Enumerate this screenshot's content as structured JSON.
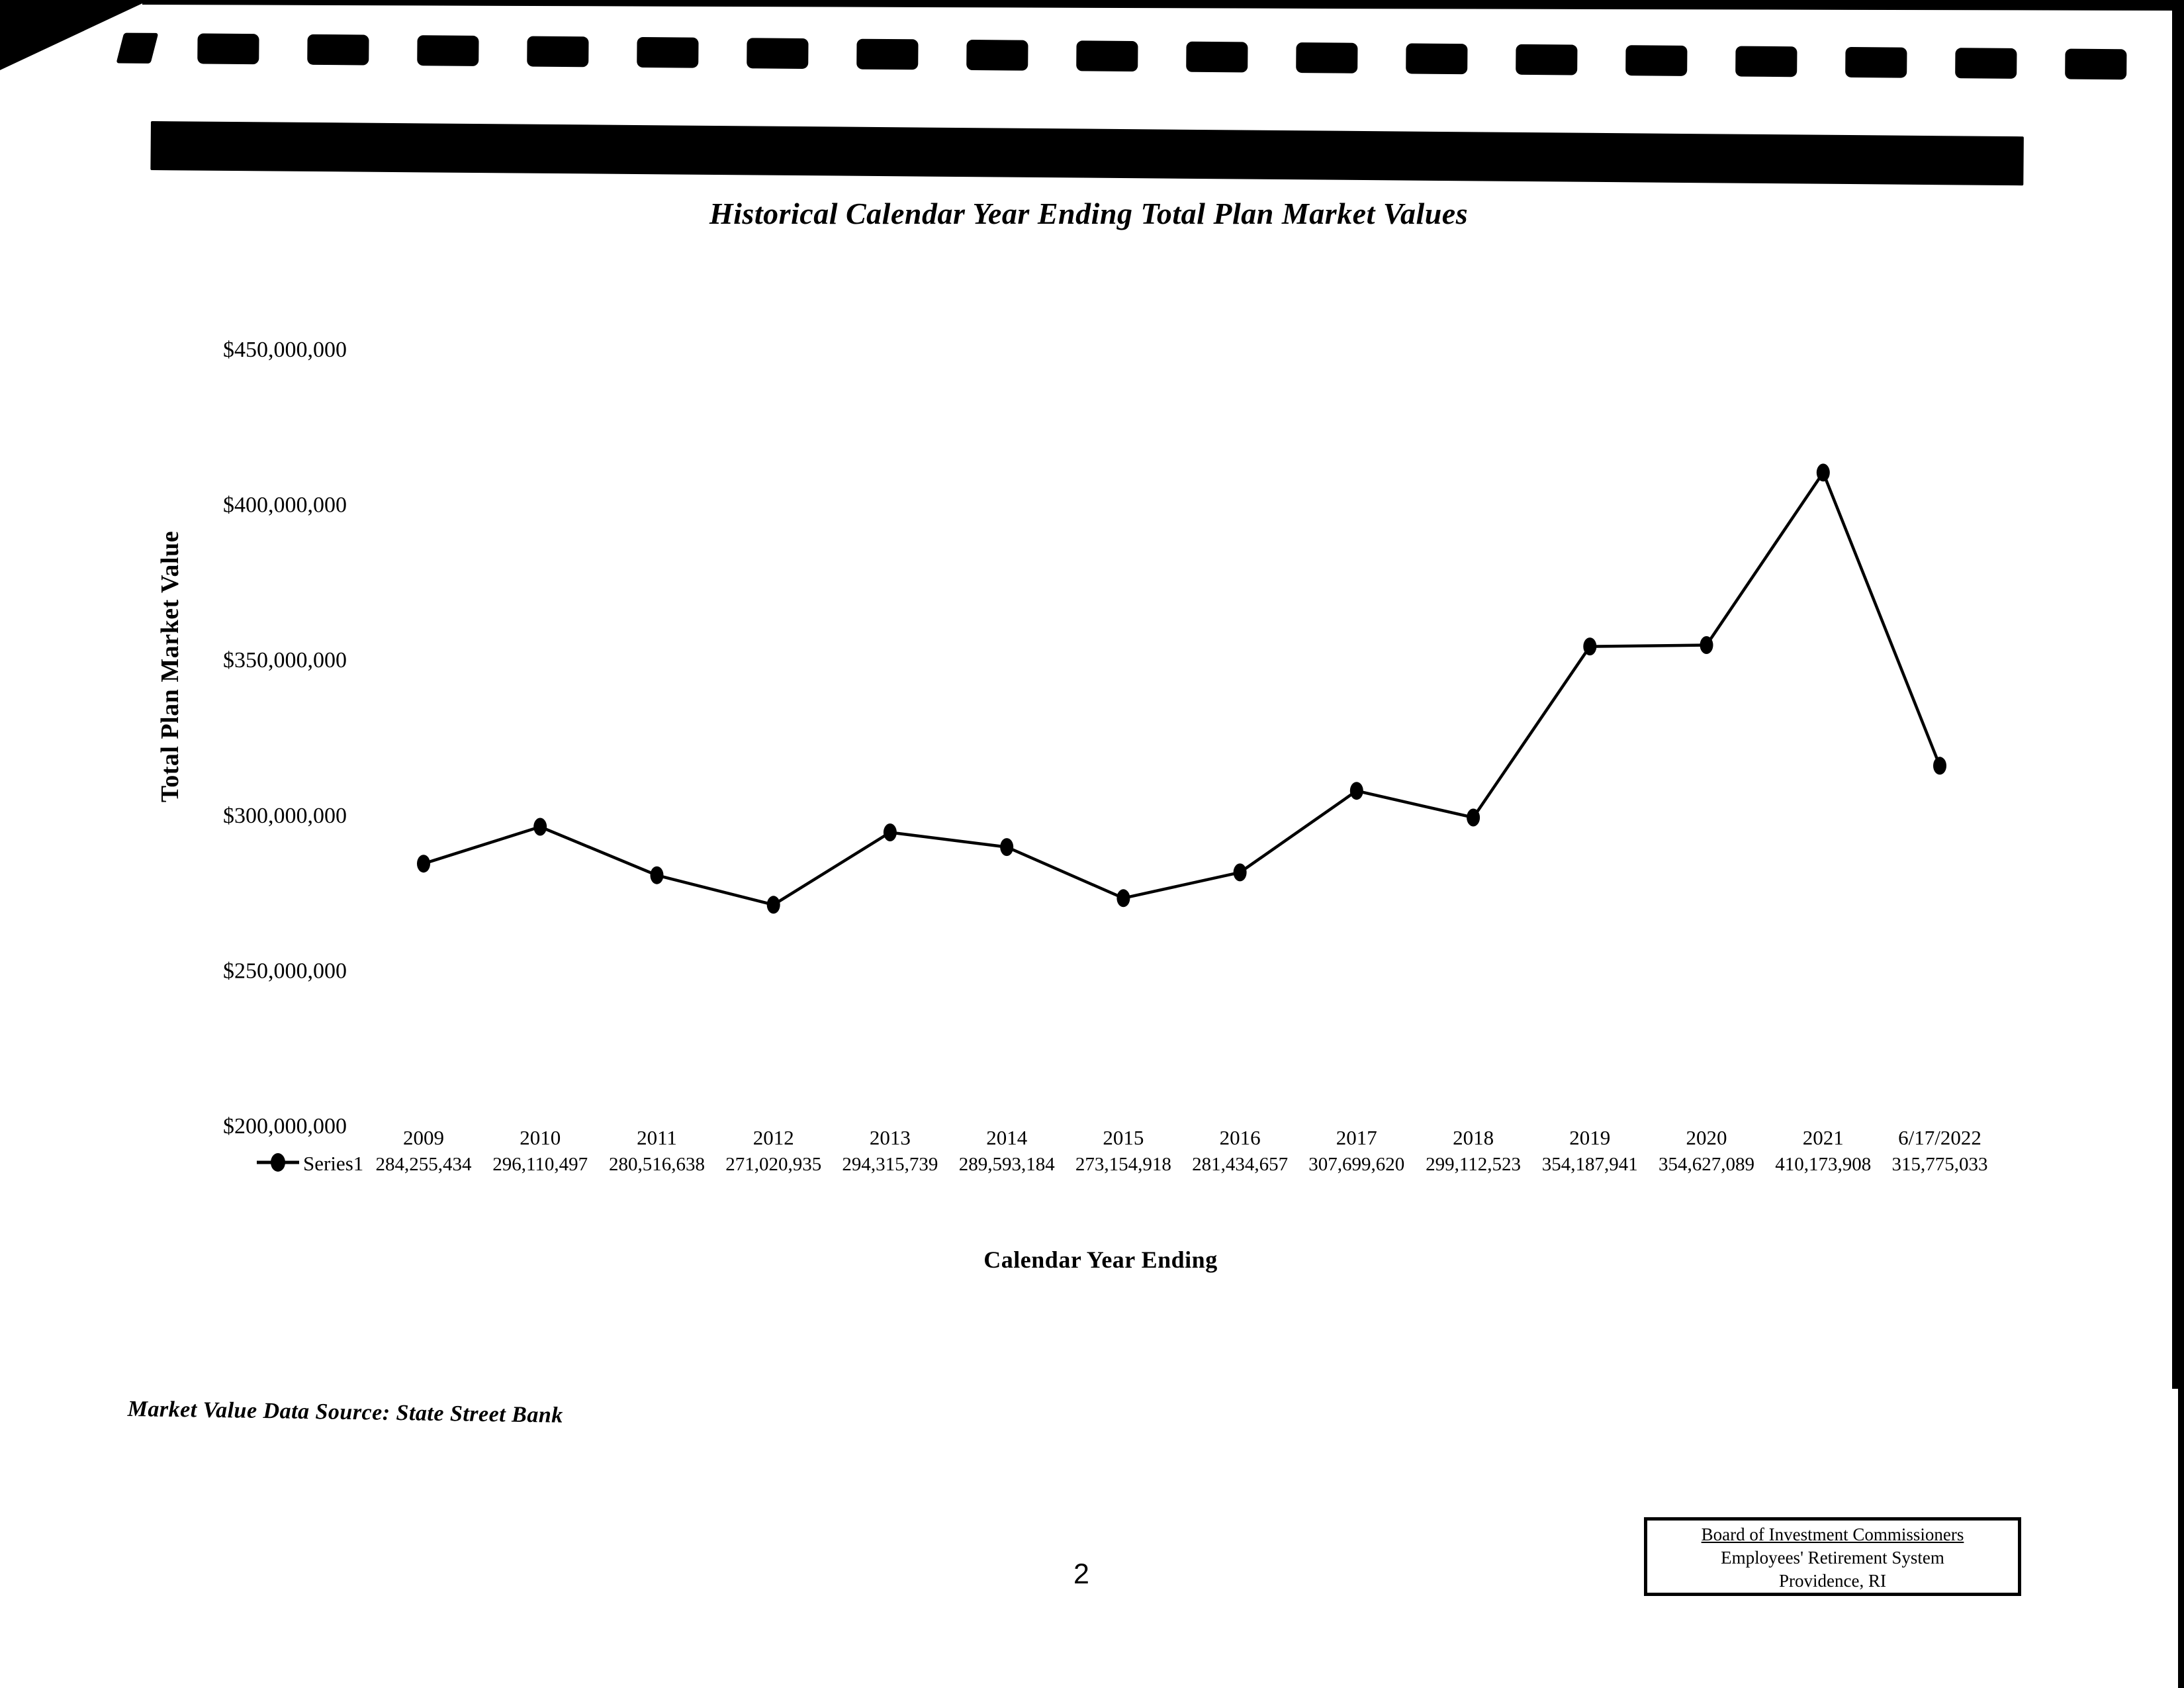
{
  "page": {
    "page_number": "2",
    "source_note": "Market Value Data Source: State Street Bank",
    "footer_box": {
      "line1": "Board of Investment Commissioners",
      "line2": "Employees' Retirement System",
      "line3": "Providence, RI"
    }
  },
  "chart_data": {
    "type": "line",
    "title": "Historical Calendar Year Ending Total Plan Market Values",
    "xlabel": "Calendar Year Ending",
    "ylabel": "Total Plan Market Value",
    "categories": [
      "2009",
      "2010",
      "2011",
      "2012",
      "2013",
      "2014",
      "2015",
      "2016",
      "2017",
      "2018",
      "2019",
      "2020",
      "2021",
      "6/17/2022"
    ],
    "series": [
      {
        "name": "Series1",
        "values": [
          284255434,
          296110497,
          280516638,
          271020935,
          294315739,
          289593184,
          273154918,
          281434657,
          307699620,
          299112523,
          354187941,
          354627089,
          410173908,
          315775033
        ]
      }
    ],
    "value_labels": [
      "284,255,434",
      "296,110,497",
      "280,516,638",
      "271,020,935",
      "294,315,739",
      "289,593,184",
      "273,154,918",
      "281,434,657",
      "307,699,620",
      "299,112,523",
      "354,187,941",
      "354,627,089",
      "410,173,908",
      "315,775,033"
    ],
    "ytick_labels": [
      "$450,000,000",
      "$400,000,000",
      "$350,000,000",
      "$300,000,000",
      "$250,000,000",
      "$200,000,000"
    ],
    "ytick_values": [
      450000000,
      400000000,
      350000000,
      300000000,
      250000000,
      200000000
    ],
    "ylim": [
      200000000,
      450000000
    ],
    "grid": false,
    "marker": "filled-circle",
    "line_color": "#000000",
    "legend_position": "bottom-left-of-values-row"
  }
}
